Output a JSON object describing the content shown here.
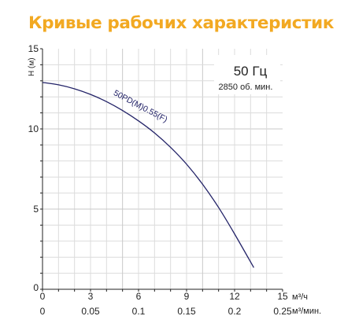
{
  "header": {
    "title": "Кривые рабочих характеристик"
  },
  "colors": {
    "title": "#f2a922",
    "curve": "#232368",
    "grid": "#dcdcdc",
    "axis": "#222222"
  },
  "chart_data": {
    "type": "line",
    "title": "Кривые рабочих характеристик",
    "ylabel": "H (м)",
    "xlabel_primary": "м³/ч",
    "xlabel_secondary": "м³/мин.",
    "xlim": [
      0,
      15
    ],
    "ylim": [
      0,
      15
    ],
    "x_ticks": [
      "0",
      "3",
      "6",
      "9",
      "12",
      "15"
    ],
    "x_ticks_secondary": [
      "0",
      "0.05",
      "0.1",
      "0.15",
      "0.2",
      "0.25"
    ],
    "y_ticks": [
      "0",
      "5",
      "10",
      "15"
    ],
    "grid": true,
    "info_box": {
      "frequency": "50 Гц",
      "speed": "2850 об. мин."
    },
    "series": [
      {
        "name": "50PD(M)0.55(F)",
        "x": [
          0,
          1,
          2,
          3,
          4,
          5,
          6,
          7,
          8,
          9,
          10,
          11,
          12,
          13.2
        ],
        "y": [
          12.9,
          12.75,
          12.5,
          12.15,
          11.7,
          11.15,
          10.5,
          9.75,
          8.85,
          7.8,
          6.55,
          5.1,
          3.45,
          1.35
        ]
      }
    ]
  }
}
